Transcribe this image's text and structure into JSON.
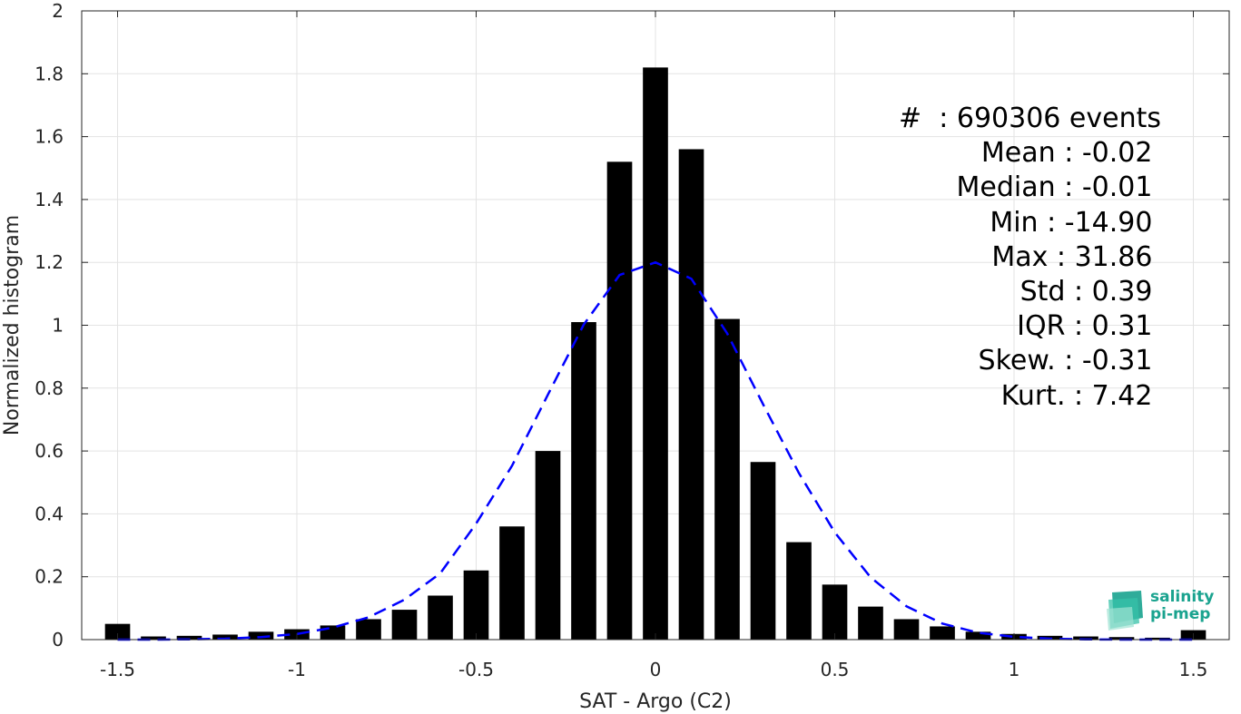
{
  "chart_data": {
    "type": "bar",
    "xlabel": "SAT - Argo (C2)",
    "ylabel": "Normalized histogram",
    "xlim": [
      -1.6,
      1.6
    ],
    "ylim": [
      0,
      2
    ],
    "xticks": [
      "-1.5",
      "-1",
      "-0.5",
      "0",
      "0.5",
      "1",
      "1.5"
    ],
    "yticks": [
      "0",
      "0.2",
      "0.4",
      "0.6",
      "0.8",
      "1",
      "1.2",
      "1.4",
      "1.6",
      "1.8",
      "2"
    ],
    "grid": true,
    "bar_color": "#000000",
    "bins_x": [
      -1.5,
      -1.4,
      -1.3,
      -1.2,
      -1.1,
      -1.0,
      -0.9,
      -0.8,
      -0.7,
      -0.6,
      -0.5,
      -0.4,
      -0.3,
      -0.2,
      -0.1,
      0.0,
      0.1,
      0.2,
      0.3,
      0.4,
      0.5,
      0.6,
      0.7,
      0.8,
      0.9,
      1.0,
      1.1,
      1.2,
      1.3,
      1.4,
      1.5
    ],
    "values": [
      0.05,
      0.01,
      0.012,
      0.016,
      0.025,
      0.033,
      0.045,
      0.065,
      0.095,
      0.14,
      0.22,
      0.36,
      0.6,
      1.01,
      1.52,
      1.82,
      1.56,
      1.02,
      0.565,
      0.31,
      0.175,
      0.105,
      0.065,
      0.042,
      0.025,
      0.018,
      0.012,
      0.01,
      0.008,
      0.006,
      0.03
    ],
    "gaussian_fit": {
      "color": "#0000ff",
      "style": "dashed",
      "x": [
        -1.5,
        -1.4,
        -1.3,
        -1.2,
        -1.1,
        -1.0,
        -0.9,
        -0.8,
        -0.7,
        -0.6,
        -0.5,
        -0.4,
        -0.3,
        -0.2,
        -0.1,
        0.0,
        0.1,
        0.2,
        0.3,
        0.4,
        0.5,
        0.6,
        0.7,
        0.8,
        0.9,
        1.0,
        1.1,
        1.2,
        1.3,
        1.4,
        1.5
      ],
      "y": [
        0.0,
        0.0,
        0.001,
        0.003,
        0.008,
        0.018,
        0.038,
        0.071,
        0.127,
        0.211,
        0.369,
        0.553,
        0.779,
        1.002,
        1.16,
        1.2,
        1.148,
        0.974,
        0.749,
        0.53,
        0.341,
        0.198,
        0.106,
        0.051,
        0.022,
        0.009,
        0.003,
        0.001,
        0.0,
        0.0,
        0.0
      ]
    }
  },
  "stats": [
    "#  : 690306 events",
    "Mean : -0.02 ",
    "Median : -0.01 ",
    "Min : -14.90 ",
    "Max : 31.86 ",
    "Std : 0.39 ",
    "IQR : 0.31 ",
    "Skew. : -0.31 ",
    "Kurt. : 7.42 "
  ],
  "logo": {
    "line1": "salinity",
    "line2": "pi-mep",
    "color": "#1aa38f"
  }
}
